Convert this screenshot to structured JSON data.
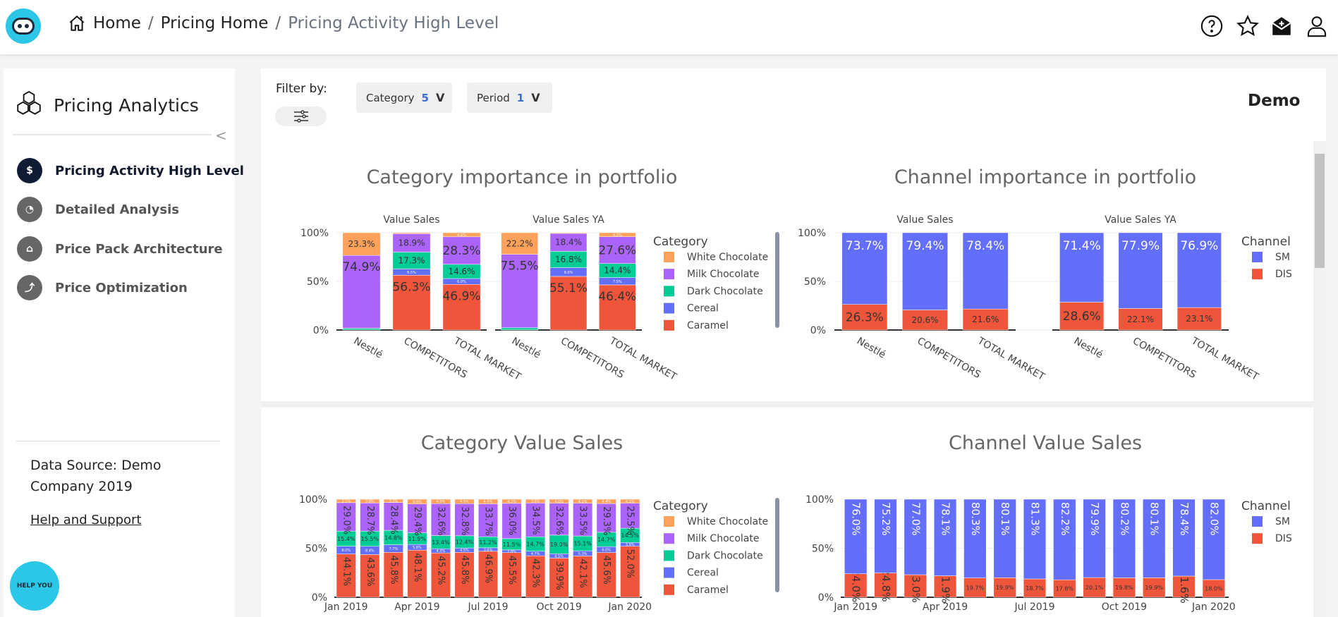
{
  "header": {
    "breadcrumb": [
      "Home",
      "Pricing Home",
      "Pricing Activity High Level"
    ],
    "icons": [
      "help-icon",
      "star-icon",
      "inbox-icon",
      "user-icon"
    ]
  },
  "sidebar": {
    "title": "Pricing Analytics",
    "items": [
      {
        "label": "Pricing Activity High Level",
        "icon": "dollar-target-icon",
        "active": true
      },
      {
        "label": "Detailed Analysis",
        "icon": "pie-chart-icon",
        "active": false
      },
      {
        "label": "Price Pack Architecture",
        "icon": "bank-icon",
        "active": false
      },
      {
        "label": "Price Optimization",
        "icon": "trend-icon",
        "active": false
      }
    ],
    "data_source": "Data Source: Demo Company 2019",
    "help_link": "Help and Support",
    "help_bot": "HELP YOU"
  },
  "filters": {
    "label": "Filter by:",
    "category": {
      "label": "Category",
      "count": "5"
    },
    "period": {
      "label": "Period",
      "count": "1"
    }
  },
  "demo_label": "Demo",
  "colors": {
    "Caramel": "#EF553B",
    "Cereal": "#636EFA",
    "Dark Chocolate": "#00CC96",
    "Milk Chocolate": "#AB63FA",
    "White Chocolate": "#FFA15A",
    "SM": "#636EFA",
    "DIS": "#EF553B"
  },
  "chart_data": [
    {
      "type": "bar",
      "stacked": true,
      "title": "Category importance in portfolio",
      "legend_title": "Category",
      "legend": [
        "White Chocolate",
        "Milk Chocolate",
        "Dark Chocolate",
        "Cereal",
        "Caramel"
      ],
      "yticks": [
        "0%",
        "50%",
        "100%"
      ],
      "ylim": [
        0,
        100
      ],
      "panels": [
        {
          "name": "Value Sales",
          "categories": [
            "Nestlé",
            "COMPETITORS",
            "TOTAL MARKET"
          ],
          "series": [
            {
              "name": "Caramel",
              "values": [
                0,
                56.3,
                46.9
              ]
            },
            {
              "name": "Cereal",
              "values": [
                0.2,
                6.5,
                6.0
              ]
            },
            {
              "name": "Dark Chocolate",
              "values": [
                1.6,
                17.3,
                14.6
              ]
            },
            {
              "name": "Milk Chocolate",
              "values": [
                74.9,
                18.9,
                28.3
              ]
            },
            {
              "name": "White Chocolate",
              "values": [
                23.3,
                1.0,
                4.2
              ]
            }
          ]
        },
        {
          "name": "Value Sales YA",
          "categories": [
            "Nestlé",
            "COMPETITORS",
            "TOTAL MARKET"
          ],
          "series": [
            {
              "name": "Caramel",
              "values": [
                0,
                55.1,
                46.4
              ]
            },
            {
              "name": "Cereal",
              "values": [
                0.2,
                9.0,
                7.5
              ]
            },
            {
              "name": "Dark Chocolate",
              "values": [
                2.1,
                16.8,
                14.4
              ]
            },
            {
              "name": "Milk Chocolate",
              "values": [
                75.5,
                18.4,
                27.6
              ]
            },
            {
              "name": "White Chocolate",
              "values": [
                22.2,
                0.7,
                4.1
              ]
            }
          ]
        }
      ]
    },
    {
      "type": "bar",
      "stacked": true,
      "title": "Channel importance in portfolio",
      "legend_title": "Channel",
      "legend": [
        "SM",
        "DIS"
      ],
      "yticks": [
        "0%",
        "50%",
        "100%"
      ],
      "ylim": [
        0,
        100
      ],
      "panels": [
        {
          "name": "Value Sales",
          "categories": [
            "Nestlé",
            "COMPETITORS",
            "TOTAL MARKET"
          ],
          "series": [
            {
              "name": "DIS",
              "values": [
                26.3,
                20.6,
                21.6
              ]
            },
            {
              "name": "SM",
              "values": [
                73.7,
                79.4,
                78.4
              ]
            }
          ]
        },
        {
          "name": "Value Sales YA",
          "categories": [
            "Nestlé",
            "COMPETITORS",
            "TOTAL MARKET"
          ],
          "series": [
            {
              "name": "DIS",
              "values": [
                28.6,
                22.1,
                23.1
              ]
            },
            {
              "name": "SM",
              "values": [
                71.4,
                77.9,
                76.9
              ]
            }
          ]
        }
      ]
    },
    {
      "type": "bar",
      "stacked": true,
      "title": "Category Value Sales",
      "legend_title": "Category",
      "legend": [
        "White Chocolate",
        "Milk Chocolate",
        "Dark Chocolate",
        "Cereal",
        "Caramel"
      ],
      "yticks": [
        "0%",
        "50%",
        "100%"
      ],
      "ylim": [
        0,
        100
      ],
      "xticks": [
        "Jan 2019",
        "Apr 2019",
        "Jul 2019",
        "Oct 2019",
        "Jan 2020"
      ],
      "panels": [
        {
          "name": "",
          "categories": [
            "2019-01",
            "2019-02",
            "2019-03",
            "2019-04",
            "2019-05",
            "2019-06",
            "2019-07",
            "2019-08",
            "2019-09",
            "2019-10",
            "2019-11",
            "2019-12",
            "2020-01"
          ],
          "series": [
            {
              "name": "Caramel",
              "values": [
                44.1,
                43.6,
                45.8,
                48.1,
                45.2,
                45.8,
                46.9,
                45.5,
                42.3,
                39.9,
                42.1,
                45.6,
                52.0
              ]
            },
            {
              "name": "Cereal",
              "values": [
                8.0,
                8.4,
                7.7,
                5.8,
                4.3,
                4.5,
                3.6,
                2.8,
                4.7,
                4.5,
                5.3,
                6.0,
                3.9
              ]
            },
            {
              "name": "Dark Chocolate",
              "values": [
                15.4,
                15.5,
                14.8,
                11.9,
                13.4,
                12.4,
                11.2,
                11.5,
                14.7,
                19.0,
                15.1,
                14.7,
                14.5
              ]
            },
            {
              "name": "Milk Chocolate",
              "values": [
                29.0,
                28.7,
                28.4,
                29.4,
                32.6,
                32.8,
                33.7,
                36.0,
                34.5,
                32.6,
                33.5,
                29.3,
                25.5
              ]
            },
            {
              "name": "White Chocolate",
              "values": [
                3.5,
                3.8,
                3.3,
                4.8,
                4.5,
                4.5,
                4.6,
                4.2,
                3.8,
                4.0,
                4.0,
                4.4,
                4.1
              ]
            }
          ]
        }
      ]
    },
    {
      "type": "bar",
      "stacked": true,
      "title": "Channel Value Sales",
      "legend_title": "Channel",
      "legend": [
        "SM",
        "DIS"
      ],
      "yticks": [
        "0%",
        "50%",
        "100%"
      ],
      "ylim": [
        0,
        100
      ],
      "xticks": [
        "Jan 2019",
        "Apr 2019",
        "Jul 2019",
        "Oct 2019",
        "Jan 2020"
      ],
      "panels": [
        {
          "name": "",
          "categories": [
            "2019-01",
            "2019-02",
            "2019-03",
            "2019-04",
            "2019-05",
            "2019-06",
            "2019-07",
            "2019-08",
            "2019-09",
            "2019-10",
            "2019-11",
            "2019-12",
            "2020-01"
          ],
          "series": [
            {
              "name": "DIS",
              "values": [
                24.0,
                24.8,
                23.0,
                21.9,
                19.7,
                19.9,
                18.7,
                17.8,
                20.1,
                19.8,
                19.9,
                21.6,
                18.0
              ]
            },
            {
              "name": "SM",
              "values": [
                76.0,
                75.2,
                77.0,
                78.1,
                80.3,
                80.1,
                81.3,
                82.2,
                79.9,
                80.2,
                80.1,
                78.4,
                82.0
              ]
            }
          ]
        }
      ]
    }
  ]
}
